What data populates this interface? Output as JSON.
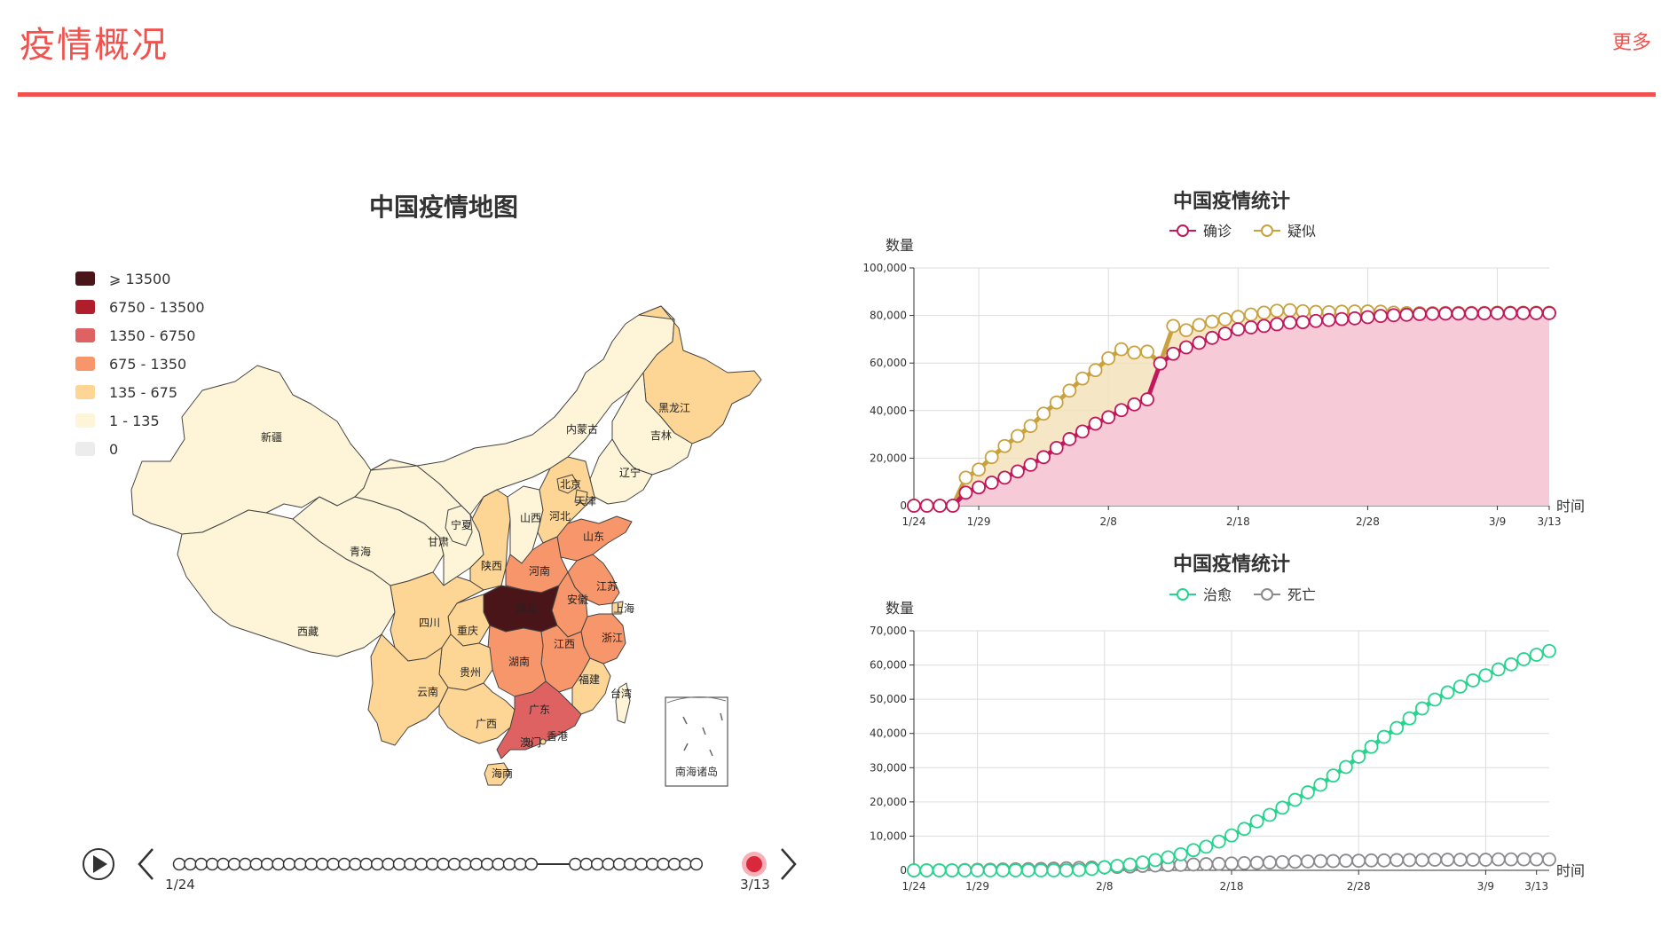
{
  "header": {
    "title": "疫情概况",
    "more": "更多"
  },
  "map": {
    "title": "中国疫情地图",
    "legend": [
      {
        "label": "⩾ 13500",
        "color": "#4a1519"
      },
      {
        "label": "6750 - 13500",
        "color": "#b01e2c"
      },
      {
        "label": "1350 - 6750",
        "color": "#df6262"
      },
      {
        "label": "675 - 1350",
        "color": "#f7966a"
      },
      {
        "label": "135 - 675",
        "color": "#fdd595"
      },
      {
        "label": "1 - 135",
        "color": "#fef5d8"
      },
      {
        "label": "0",
        "color": "#ececec"
      }
    ],
    "provinces": [
      {
        "name": "新疆"
      },
      {
        "name": "西藏"
      },
      {
        "name": "青海"
      },
      {
        "name": "甘肃"
      },
      {
        "name": "内蒙古"
      },
      {
        "name": "宁夏"
      },
      {
        "name": "四川"
      },
      {
        "name": "云南"
      },
      {
        "name": "黑龙江"
      },
      {
        "name": "吉林"
      },
      {
        "name": "辽宁"
      },
      {
        "name": "北京"
      },
      {
        "name": "天津"
      },
      {
        "name": "河北"
      },
      {
        "name": "山西"
      },
      {
        "name": "陕西"
      },
      {
        "name": "山东"
      },
      {
        "name": "河南"
      },
      {
        "name": "江苏"
      },
      {
        "name": "安徽"
      },
      {
        "name": "上海"
      },
      {
        "name": "湖北"
      },
      {
        "name": "重庆"
      },
      {
        "name": "浙江"
      },
      {
        "name": "江西"
      },
      {
        "name": "湖南"
      },
      {
        "name": "贵州"
      },
      {
        "name": "福建"
      },
      {
        "name": "台湾"
      },
      {
        "name": "广西"
      },
      {
        "name": "广东"
      },
      {
        "name": "香港"
      },
      {
        "name": "澳门"
      },
      {
        "name": "海南"
      }
    ],
    "inset_label": "南海诸岛",
    "timeline": {
      "start": "1/24",
      "end": "3/13"
    }
  },
  "chart_data": [
    {
      "type": "area",
      "title": "中国疫情统计",
      "ylabel": "数量",
      "xlabel": "时间",
      "ylim": [
        0,
        100000
      ],
      "yticks": [
        "0",
        "20,000",
        "40,000",
        "60,000",
        "80,000",
        "100,000"
      ],
      "xtick_labels": [
        "1/24",
        "1/29",
        "2/8",
        "2/18",
        "2/28",
        "3/9",
        "3/13"
      ],
      "series": [
        {
          "name": "确诊",
          "color": "#c2185b",
          "fill": "#f7c8d8",
          "values": [
            0,
            0,
            0,
            0,
            5500,
            7700,
            9700,
            11800,
            14400,
            17200,
            20400,
            24300,
            28000,
            31200,
            34500,
            37200,
            40200,
            42600,
            44700,
            59800,
            63900,
            66600,
            68500,
            70600,
            72400,
            74200,
            75000,
            75600,
            76300,
            77000,
            77200,
            77700,
            78100,
            78500,
            78800,
            79300,
            79800,
            80100,
            80300,
            80600,
            80700,
            80800,
            80800,
            80900,
            80900,
            81000,
            81000,
            81000,
            81000,
            81000
          ]
        },
        {
          "name": "疑似",
          "color": "#c9a240",
          "fill": "#f3e0b8",
          "values": [
            0,
            0,
            0,
            0,
            11800,
            15200,
            20400,
            25100,
            29300,
            33500,
            38700,
            43400,
            48400,
            53500,
            57000,
            62000,
            65800,
            64400,
            64800,
            60000,
            75600,
            73800,
            76000,
            77400,
            78400,
            79400,
            80400,
            81200,
            82000,
            82200,
            81800,
            81500,
            81400,
            81600,
            81700,
            81700,
            81600,
            81200,
            81000,
            81000,
            81000,
            81100,
            81100,
            81100,
            81100,
            81200,
            81200,
            81200,
            81200,
            81200
          ]
        }
      ]
    },
    {
      "type": "line",
      "title": "中国疫情统计",
      "ylabel": "数量",
      "xlabel": "时间",
      "ylim": [
        0,
        70000
      ],
      "yticks": [
        "0",
        "10,000",
        "20,000",
        "30,000",
        "40,000",
        "50,000",
        "60,000",
        "70,000"
      ],
      "xtick_labels": [
        "1/24",
        "1/29",
        "2/8",
        "2/18",
        "2/28",
        "3/9",
        "3/13"
      ],
      "series": [
        {
          "name": "治愈",
          "color": "#26d48e",
          "values": [
            0,
            0,
            0,
            0,
            0,
            0,
            0,
            0,
            0,
            0,
            0,
            0,
            0,
            100,
            400,
            900,
            1300,
            1700,
            2300,
            3000,
            3800,
            4700,
            5900,
            6900,
            8400,
            10200,
            12100,
            14300,
            16200,
            18300,
            20600,
            22800,
            25000,
            27700,
            30200,
            33200,
            36100,
            39000,
            41600,
            44400,
            47300,
            49900,
            52000,
            53700,
            55500,
            57000,
            58700,
            60200,
            61700,
            63000,
            64100
          ]
        },
        {
          "name": "死亡",
          "color": "#8a8a8e",
          "values": [
            0,
            0,
            0,
            0,
            100,
            150,
            200,
            250,
            300,
            350,
            400,
            500,
            600,
            700,
            800,
            900,
            1000,
            1100,
            1300,
            1400,
            1500,
            1600,
            1700,
            1800,
            1900,
            2000,
            2100,
            2200,
            2300,
            2400,
            2500,
            2600,
            2700,
            2700,
            2800,
            2800,
            2900,
            2900,
            3000,
            3000,
            3000,
            3100,
            3100,
            3100,
            3100,
            3100,
            3200,
            3200,
            3200,
            3200,
            3200
          ]
        }
      ]
    }
  ]
}
